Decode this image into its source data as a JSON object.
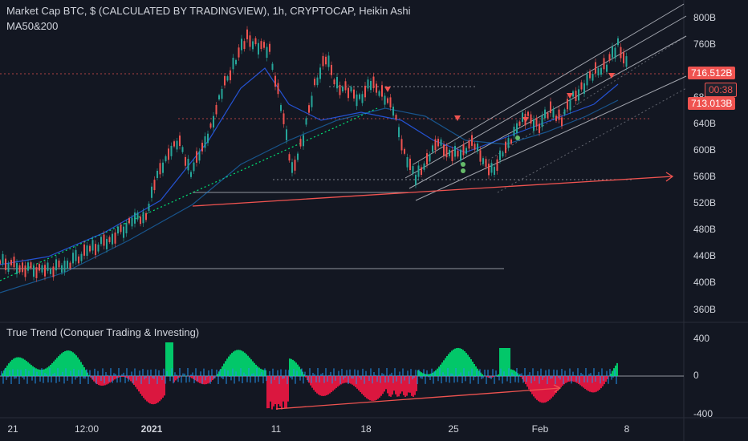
{
  "header": {
    "title": "Market Cap BTC, $ (CALCULATED BY TRADINGVIEW), 1h, CRYPTOCAP, Heikin Ashi",
    "indicator": "MA50&200"
  },
  "oscillator": {
    "title": "True Trend (Conquer Trading & Investing)",
    "y_ticks": [
      "400",
      "0",
      "-400"
    ]
  },
  "price_axis": {
    "ticks": [
      "800B",
      "760B",
      "720B",
      "680B",
      "640B",
      "600B",
      "560B",
      "520B",
      "480B",
      "440B",
      "400B",
      "360B"
    ]
  },
  "time_axis": {
    "labels": [
      {
        "text": "21",
        "bold": false
      },
      {
        "text": "12:00",
        "bold": false
      },
      {
        "text": "2021",
        "bold": true
      },
      {
        "text": "11",
        "bold": false
      },
      {
        "text": "18",
        "bold": false
      },
      {
        "text": "25",
        "bold": false
      },
      {
        "text": "Feb",
        "bold": false
      },
      {
        "text": "8",
        "bold": false
      }
    ]
  },
  "badges": {
    "last_price": "716.512B",
    "countdown": "00:38",
    "ma_value": "713.013B"
  },
  "colors": {
    "background": "#131722",
    "up": "#26a69a",
    "down": "#ef5350",
    "osc_up": "#00e676",
    "osc_down": "#ff1744",
    "osc_line": "#2196f3"
  },
  "chart_data": {
    "type": "line",
    "title": "Market Cap BTC, $ (CALCULATED BY TRADINGVIEW), 1h, CRYPTOCAP, Heikin Ashi",
    "ylim": [
      340,
      820
    ],
    "y_unit": "B",
    "series": [
      {
        "name": "",
        "points": [
          [
            0,
            432
          ],
          [
            4,
            425
          ],
          [
            8,
            418
          ],
          [
            12,
            430
          ],
          [
            16,
            450
          ],
          [
            20,
            470
          ],
          [
            24,
            495
          ],
          [
            26,
            505
          ],
          [
            28,
            560
          ],
          [
            30,
            600
          ],
          [
            32,
            610
          ],
          [
            34,
            570
          ],
          [
            36,
            600
          ],
          [
            38,
            650
          ],
          [
            40,
            700
          ],
          [
            42,
            740
          ],
          [
            44,
            770
          ],
          [
            46,
            760
          ],
          [
            48,
            750
          ],
          [
            50,
            670
          ],
          [
            52,
            570
          ],
          [
            54,
            620
          ],
          [
            56,
            700
          ],
          [
            58,
            740
          ],
          [
            60,
            700
          ],
          [
            62,
            690
          ],
          [
            64,
            680
          ],
          [
            66,
            700
          ],
          [
            68,
            690
          ],
          [
            70,
            660
          ],
          [
            72,
            600
          ],
          [
            74,
            555
          ],
          [
            76,
            590
          ],
          [
            78,
            610
          ],
          [
            80,
            600
          ],
          [
            82,
            590
          ],
          [
            84,
            620
          ],
          [
            86,
            580
          ],
          [
            88,
            575
          ],
          [
            90,
            600
          ],
          [
            92,
            640
          ],
          [
            94,
            650
          ],
          [
            96,
            640
          ],
          [
            98,
            660
          ],
          [
            100,
            650
          ],
          [
            102,
            680
          ],
          [
            104,
            700
          ],
          [
            106,
            720
          ],
          [
            108,
            730
          ],
          [
            110,
            760
          ],
          [
            111,
            745
          ],
          [
            112,
            716
          ]
        ]
      }
    ]
  }
}
